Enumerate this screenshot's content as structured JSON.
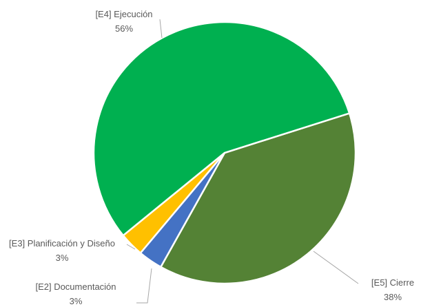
{
  "chart_data": {
    "type": "pie",
    "categories": [
      "[E5] Cierre",
      "[E2] Documentación",
      "[E3] Planificación y Diseño",
      "[E4] Ejecución"
    ],
    "values": [
      38,
      3,
      3,
      56
    ],
    "value_labels": [
      "38%",
      "3%",
      "3%",
      "56%"
    ],
    "colors": [
      "#548235",
      "#4472c4",
      "#ffc000",
      "#00b050"
    ]
  }
}
